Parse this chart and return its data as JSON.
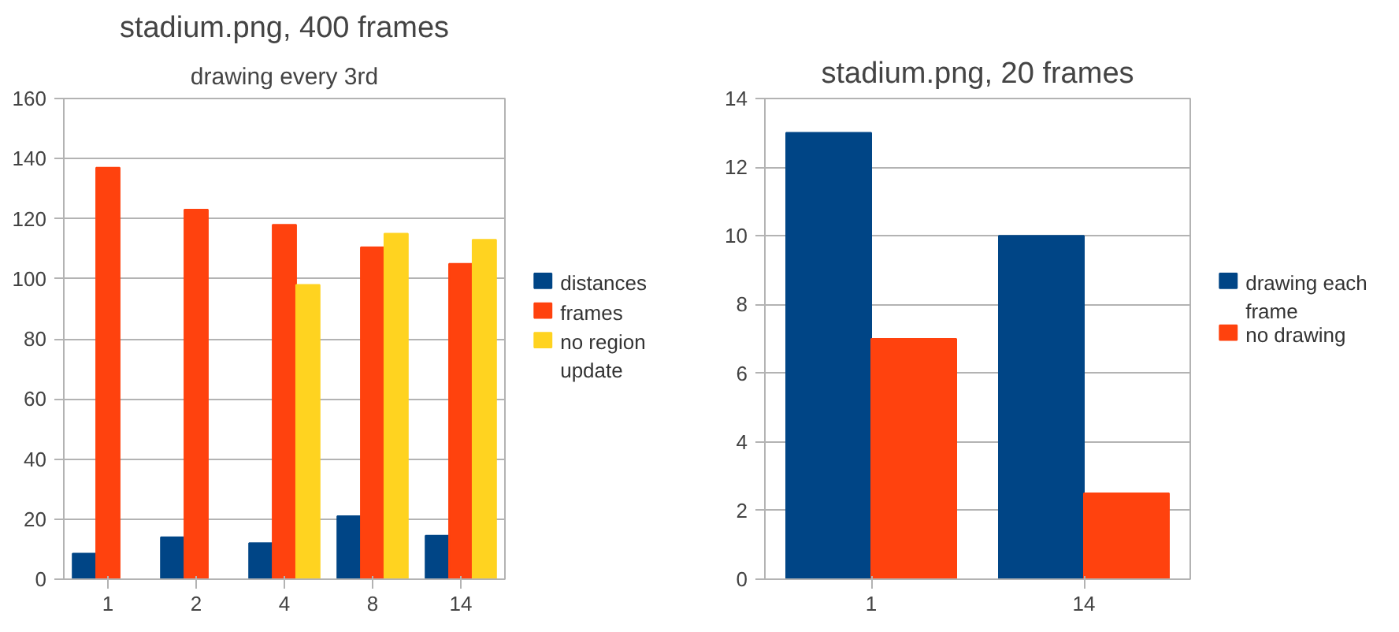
{
  "chart_data": [
    {
      "type": "bar",
      "title": "stadium.png, 400 frames",
      "subtitle": "drawing every 3rd",
      "categories": [
        "1",
        "2",
        "4",
        "8",
        "14"
      ],
      "series": [
        {
          "name": "distances",
          "color": "#004586",
          "values": [
            8.5,
            14,
            12,
            21,
            14.5
          ]
        },
        {
          "name": "frames",
          "color": "#ff420e",
          "values": [
            137,
            123,
            118,
            110.5,
            105
          ]
        },
        {
          "name": "no region update",
          "color": "#ffd320",
          "values": [
            null,
            null,
            98,
            115,
            113
          ]
        }
      ],
      "ylim": [
        0,
        160
      ],
      "yticks": [
        0,
        20,
        40,
        60,
        80,
        100,
        120,
        140,
        160
      ],
      "grid": "y",
      "legend": "right"
    },
    {
      "type": "bar",
      "title": "stadium.png, 20 frames",
      "categories": [
        "1",
        "14"
      ],
      "series": [
        {
          "name": "drawing each frame",
          "color": "#004586",
          "values": [
            13,
            10
          ]
        },
        {
          "name": "no drawing",
          "color": "#ff420e",
          "values": [
            7,
            2.5
          ]
        }
      ],
      "ylim": [
        0,
        14
      ],
      "yticks": [
        0,
        2,
        4,
        6,
        8,
        10,
        12,
        14
      ],
      "grid": "y",
      "legend": "right"
    }
  ]
}
